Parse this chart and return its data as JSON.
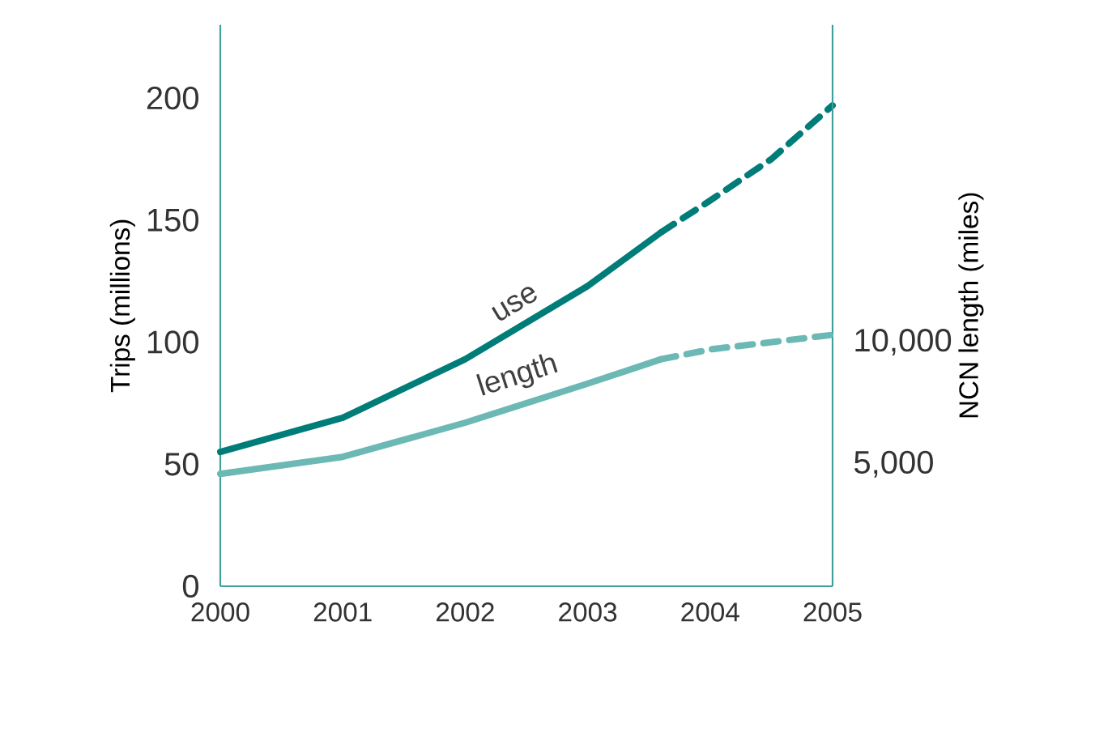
{
  "chart_data": {
    "type": "line",
    "xlabel": null,
    "ylabel": "Trips (millions)",
    "y2label": "NCN length (miles)",
    "xlim": [
      2000,
      2005
    ],
    "xticks": [
      2000,
      2001,
      2002,
      2003,
      2004,
      2005
    ],
    "ylim": [
      0,
      230
    ],
    "yticks": [
      0,
      50,
      100,
      150,
      200
    ],
    "y2lim": [
      0,
      23000
    ],
    "y2ticks": [
      {
        "value": 5000,
        "label": "5,000"
      },
      {
        "value": 10000,
        "label": "10,000"
      }
    ],
    "series": [
      {
        "name": "use",
        "color": "#007d78",
        "line_style": "solid",
        "x": [
          2000,
          2001,
          2002,
          2003,
          2003.6
        ],
        "values": [
          55,
          69,
          93,
          123,
          145
        ]
      },
      {
        "color": "#007d78",
        "line_style": "dashed",
        "x": [
          2003.6,
          2004,
          2004.5,
          2005
        ],
        "values": [
          145,
          158,
          175,
          197
        ]
      },
      {
        "name": "length",
        "color": "#6bb8b5",
        "line_style": "solid",
        "axis": "y2",
        "x": [
          2000,
          2001,
          2002,
          2003,
          2003.6
        ],
        "values": [
          4600,
          5300,
          6700,
          8300,
          9300
        ]
      },
      {
        "color": "#6bb8b5",
        "line_style": "dashed",
        "axis": "y2",
        "x": [
          2003.6,
          2004,
          2005
        ],
        "values": [
          9300,
          9700,
          10300
        ]
      }
    ]
  }
}
